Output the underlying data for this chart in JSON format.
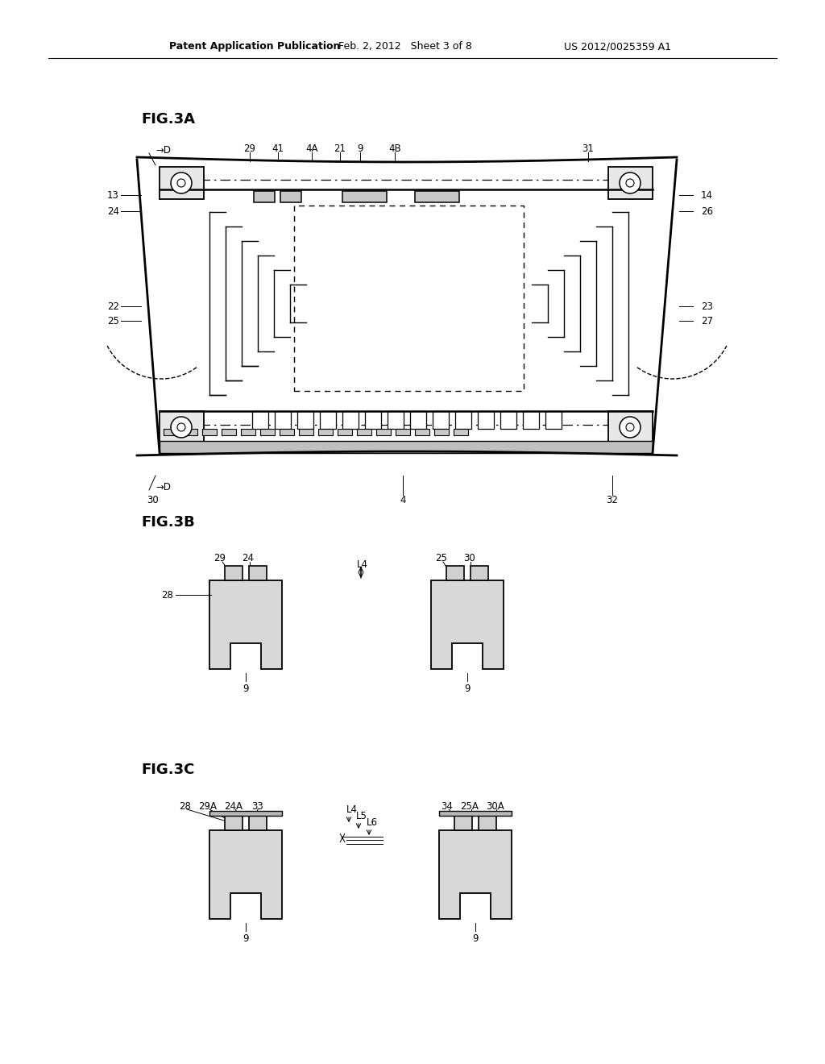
{
  "bg_color": "#ffffff",
  "header_left": "Patent Application Publication",
  "header_center": "Feb. 2, 2012   Sheet 3 of 8",
  "header_right": "US 2012/0025359 A1",
  "fig3a_label": "FIG.3A",
  "fig3b_label": "FIG.3B",
  "fig3c_label": "FIG.3C"
}
